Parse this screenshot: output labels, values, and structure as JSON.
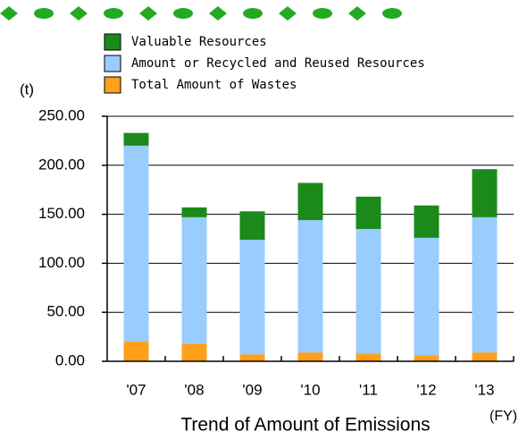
{
  "chart_data": {
    "type": "stacked_bar",
    "title": "Trend of Amount of Emissions",
    "y_unit_label": "(t)",
    "x_unit_label": "(FY)",
    "categories": [
      "'07",
      "'08",
      "'09",
      "'10",
      "'11",
      "'12",
      "'13"
    ],
    "series": [
      {
        "name": "Valuable Resources",
        "color": "#1b8a1b",
        "values": [
          13,
          10,
          29,
          38,
          33,
          33,
          49
        ]
      },
      {
        "name": "Amount or Recycled and Reused Resources",
        "color": "#99ccff",
        "values": [
          200,
          129,
          117,
          135,
          127,
          120,
          138
        ]
      },
      {
        "name": "Total Amount of Wastes",
        "color": "#ff9f1a",
        "values": [
          20,
          18,
          7,
          9,
          8,
          6,
          9
        ]
      }
    ],
    "ylim": [
      0,
      250
    ],
    "yticks": [
      {
        "value": 0,
        "label": "0.00"
      },
      {
        "value": 50,
        "label": "50.00"
      },
      {
        "value": 100,
        "label": "100.00"
      },
      {
        "value": 150,
        "label": "150.00"
      },
      {
        "value": 200,
        "label": "200.00"
      },
      {
        "value": 250,
        "label": "250.00"
      }
    ],
    "grid": true
  }
}
